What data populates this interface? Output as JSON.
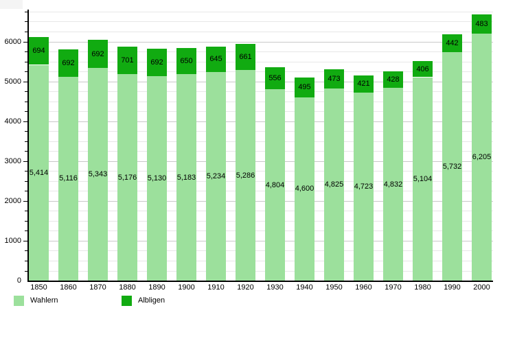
{
  "chart_data": {
    "type": "bar",
    "stacked": true,
    "title": "",
    "xlabel": "",
    "ylabel": "",
    "categories": [
      "1850",
      "1860",
      "1870",
      "1880",
      "1890",
      "1900",
      "1910",
      "1920",
      "1930",
      "1940",
      "1950",
      "1960",
      "1970",
      "1980",
      "1990",
      "2000"
    ],
    "series": [
      {
        "name": "Wahlern",
        "color": "#9CE09C",
        "values": [
          5414,
          5116,
          5343,
          5176,
          5130,
          5183,
          5234,
          5286,
          4804,
          4600,
          4825,
          4723,
          4832,
          5104,
          5732,
          6205
        ],
        "value_labels": [
          "5,414",
          "5,116",
          "5,343",
          "5,176",
          "5,130",
          "5,183",
          "5,234",
          "5,286",
          "4,804",
          "4,600",
          "4,825",
          "4,723",
          "4,832",
          "5,104",
          "5,732",
          "6,205"
        ]
      },
      {
        "name": "Albligen",
        "color": "#11AB11",
        "values": [
          694,
          692,
          692,
          701,
          692,
          650,
          645,
          661,
          556,
          495,
          473,
          421,
          428,
          406,
          442,
          483
        ],
        "value_labels": [
          "694",
          "692",
          "692",
          "701",
          "692",
          "650",
          "645",
          "661",
          "556",
          "495",
          "473",
          "421",
          "428",
          "406",
          "442",
          "483"
        ]
      }
    ],
    "ylim": [
      0,
      6800
    ],
    "ytick_major_step": 1000,
    "ytick_minor_step": 250,
    "ytick_labels": [
      "0",
      "1000",
      "2000",
      "3000",
      "4000",
      "5000",
      "6000"
    ],
    "grid": true,
    "legend_position": "bottom"
  }
}
